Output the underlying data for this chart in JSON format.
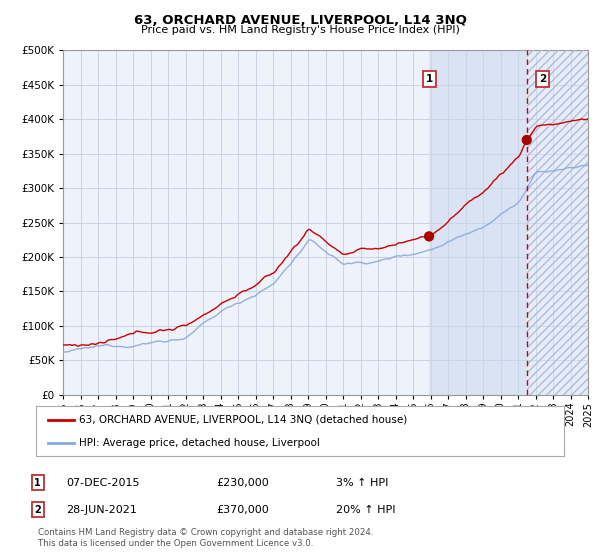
{
  "title": "63, ORCHARD AVENUE, LIVERPOOL, L14 3NQ",
  "subtitle": "Price paid vs. HM Land Registry's House Price Index (HPI)",
  "line1_label": "63, ORCHARD AVENUE, LIVERPOOL, L14 3NQ (detached house)",
  "line2_label": "HPI: Average price, detached house, Liverpool",
  "marker1_date": "07-DEC-2015",
  "marker1_price": 230000,
  "marker1_year": 2015.92,
  "marker1_pct": "3% ↑ HPI",
  "marker2_date": "28-JUN-2021",
  "marker2_price": 370000,
  "marker2_year": 2021.5,
  "marker2_pct": "20% ↑ HPI",
  "footer": "Contains HM Land Registry data © Crown copyright and database right 2024.\nThis data is licensed under the Open Government Licence v3.0.",
  "bg_color": "#eef2fb",
  "grid_color": "#c8cce0",
  "line1_color": "#cc0000",
  "line2_color": "#88aadd",
  "marker_color": "#aa0000",
  "vline_color": "#cc0000",
  "ylim": [
    0,
    500000
  ],
  "yticks": [
    0,
    50000,
    100000,
    150000,
    200000,
    250000,
    300000,
    350000,
    400000,
    450000,
    500000
  ],
  "start_year": 1995,
  "end_year": 2025
}
